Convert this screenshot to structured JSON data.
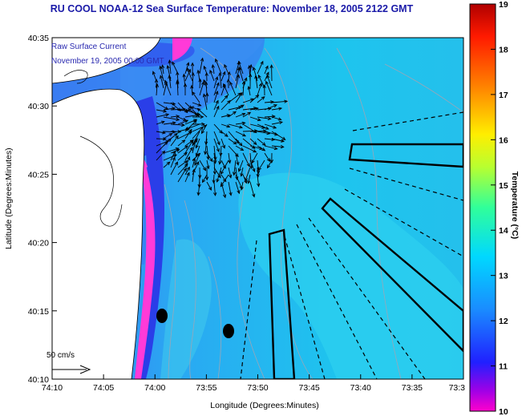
{
  "title": "RU COOL  NOAA-12  Sea Surface Temperature:  November 18, 2005 2122 GMT",
  "inset": {
    "line1": "Raw Surface Current",
    "line2": "November 19, 2005 00:00 GMT"
  },
  "scale_label": "50 cm/s",
  "chart_data": {
    "type": "heatmap",
    "xlabel": "Longitude (Degrees:Minutes)",
    "ylabel": "Latitude (Degrees:Minutes)",
    "colorbar_label": "Temperature (°C)",
    "x_ticks": [
      "74:10",
      "74:05",
      "74:00",
      "73:55",
      "73:50",
      "73:45",
      "73:40",
      "73:35",
      "73:3"
    ],
    "y_ticks": [
      "40:35",
      "40:30",
      "40:25",
      "40:20",
      "40:15",
      "40:10"
    ],
    "xlim_minutes_west": [
      10,
      30
    ],
    "ylim_minutes_north": [
      10,
      35
    ],
    "colorbar_ticks": [
      19,
      18,
      17,
      16,
      15,
      14,
      13,
      12,
      11,
      10
    ],
    "colorbar_range": [
      10,
      19
    ],
    "colors": {
      "ocean_main": "#22c6ee",
      "ocean_cool": "#3a8cf4",
      "coastal_cold": "#2a3fe6",
      "shore_min": "#ff3ad8",
      "land": "#ffffff"
    }
  }
}
